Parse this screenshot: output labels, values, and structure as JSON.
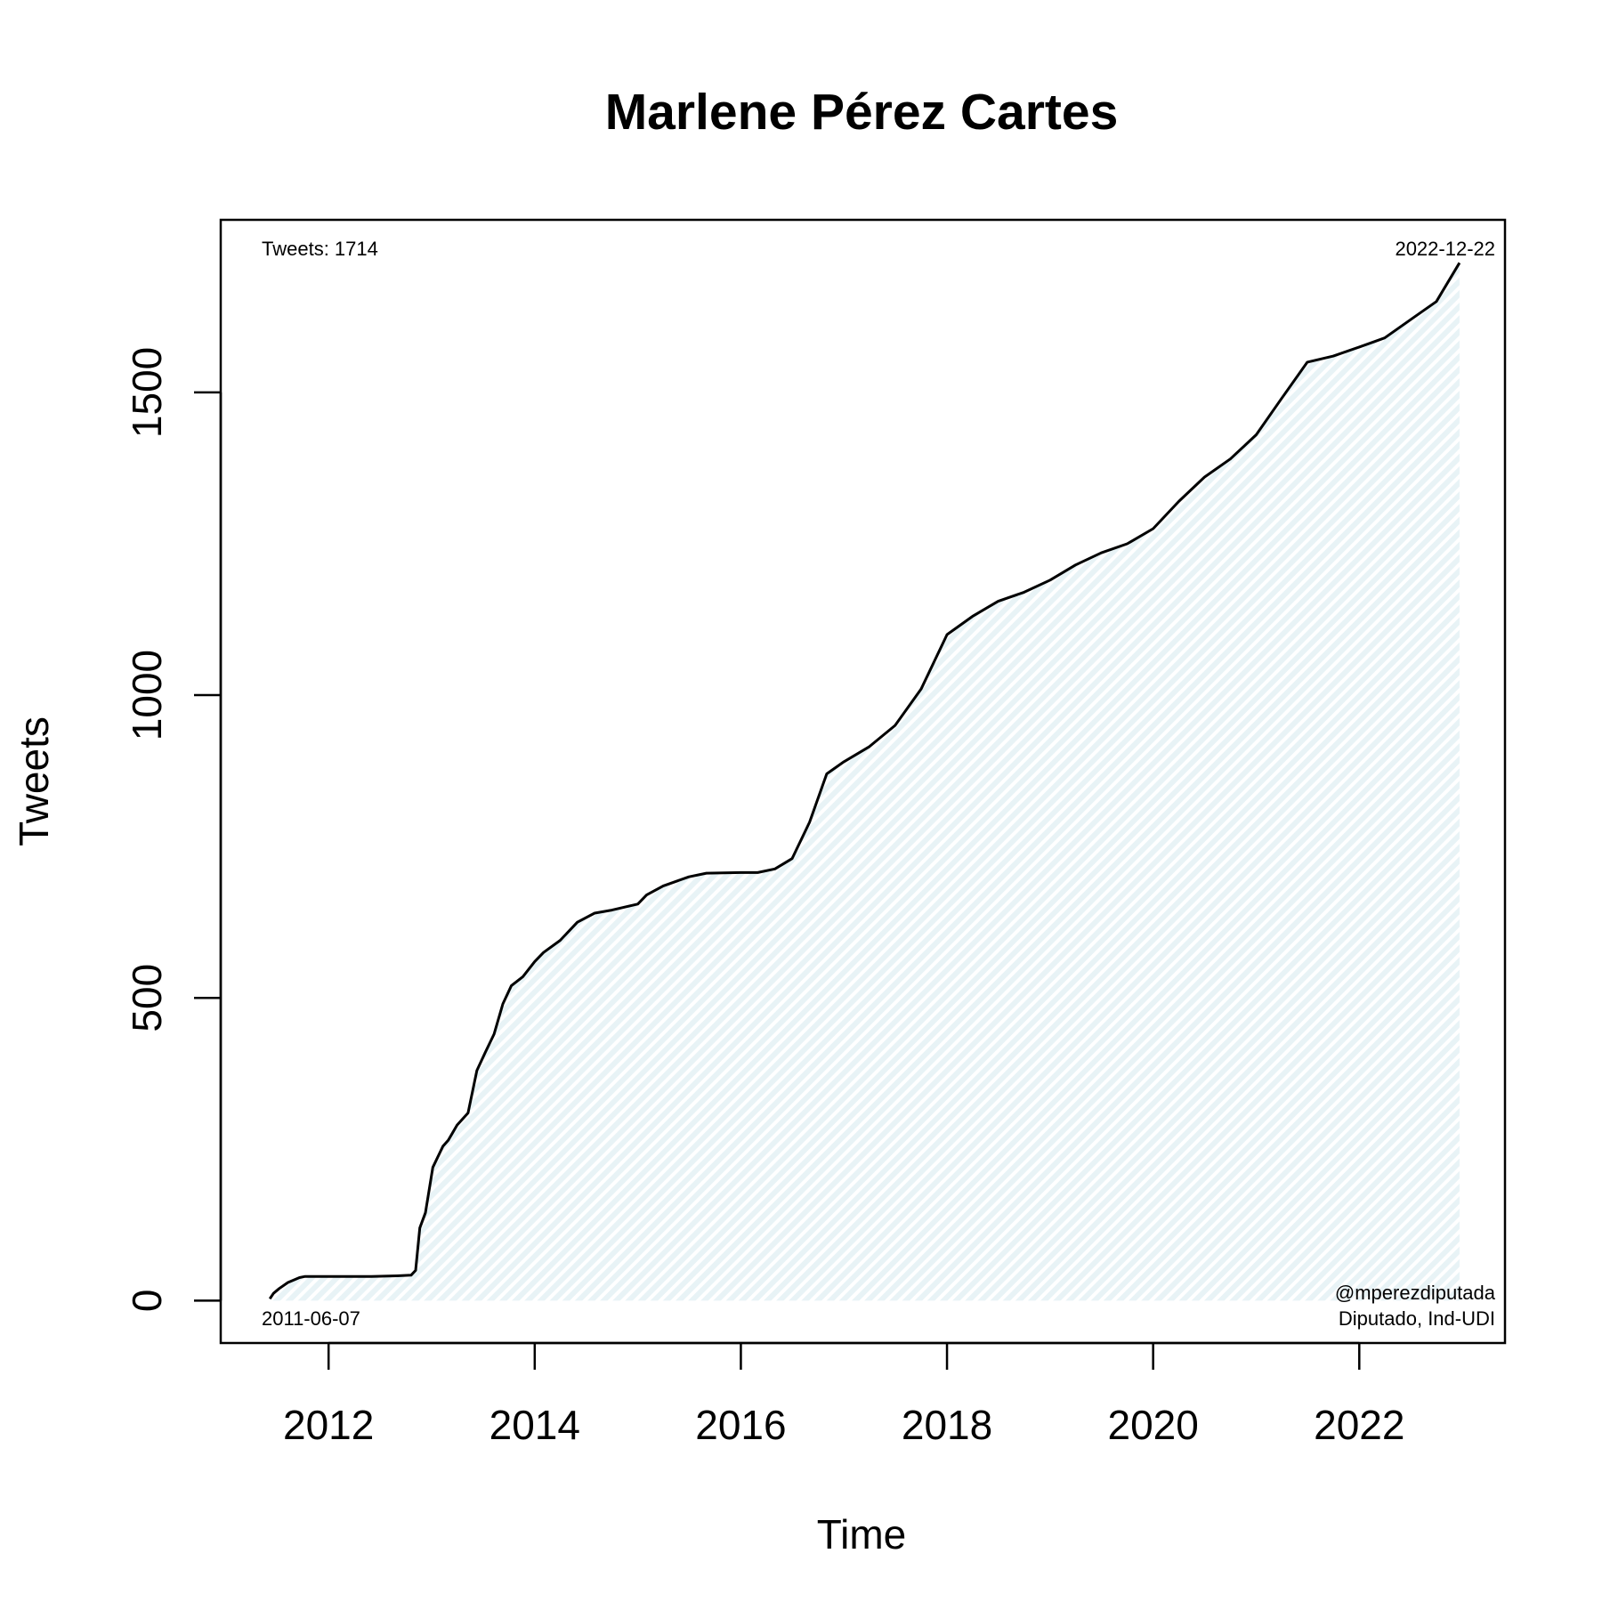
{
  "chart_data": {
    "type": "area",
    "title": "Marlene Pérez Cartes",
    "xlabel": "Time",
    "ylabel": "Tweets",
    "xlim": [
      "2010-12-15",
      "2023-06-01"
    ],
    "ylim": [
      -70,
      1785
    ],
    "x_ticks": [
      "2012",
      "2014",
      "2016",
      "2018",
      "2020",
      "2022"
    ],
    "y_ticks": [
      0,
      500,
      1000,
      1500
    ],
    "grid": false,
    "line_color": "#000000",
    "fill_color": "#e8f3f6",
    "annotations": {
      "tweets_total": "Tweets: 1714",
      "end_date": "2022-12-22",
      "start_date": "2011-06-07",
      "handle": "@mperezdiputada",
      "role": "Diputado, Ind-UDI"
    },
    "series": [
      {
        "x": [
          "2011-06-07",
          "2011-06-20",
          "2011-07-10",
          "2011-08-10",
          "2011-09-20",
          "2011-10-10",
          "2012-01-01",
          "2012-06-01",
          "2012-09-01",
          "2012-10-20",
          "2012-11-05",
          "2012-11-20",
          "2012-12-10",
          "2013-01-05",
          "2013-02-10",
          "2013-03-01",
          "2013-04-01",
          "2013-05-10",
          "2013-06-10",
          "2013-07-10",
          "2013-08-10",
          "2013-09-10",
          "2013-10-10",
          "2013-11-20",
          "2014-01-01",
          "2014-02-01",
          "2014-04-01",
          "2014-06-01",
          "2014-08-01",
          "2014-10-01",
          "2015-01-01",
          "2015-02-01",
          "2015-04-01",
          "2015-07-01",
          "2015-09-01",
          "2016-01-01",
          "2016-03-01",
          "2016-05-01",
          "2016-07-01",
          "2016-09-01",
          "2016-11-01",
          "2017-01-01",
          "2017-04-01",
          "2017-07-01",
          "2017-10-01",
          "2018-01-01",
          "2018-04-01",
          "2018-07-01",
          "2018-10-01",
          "2019-01-01",
          "2019-04-01",
          "2019-07-01",
          "2019-10-01",
          "2020-01-01",
          "2020-04-01",
          "2020-07-01",
          "2020-10-01",
          "2021-01-01",
          "2021-04-01",
          "2021-07-01",
          "2021-10-01",
          "2022-01-01",
          "2022-04-01",
          "2022-07-01",
          "2022-10-01",
          "2022-12-22"
        ],
        "y": [
          3,
          12,
          20,
          30,
          38,
          40,
          40,
          40,
          41,
          42,
          50,
          120,
          145,
          220,
          255,
          265,
          290,
          310,
          380,
          410,
          440,
          490,
          520,
          535,
          560,
          575,
          595,
          625,
          640,
          645,
          655,
          670,
          685,
          700,
          706,
          707,
          707,
          713,
          730,
          790,
          870,
          890,
          915,
          950,
          1010,
          1100,
          1130,
          1155,
          1170,
          1190,
          1215,
          1235,
          1250,
          1275,
          1320,
          1360,
          1390,
          1430,
          1490,
          1550,
          1560,
          1575,
          1590,
          1620,
          1650,
          1714
        ]
      }
    ]
  }
}
